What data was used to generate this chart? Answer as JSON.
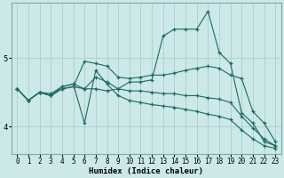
{
  "title": "",
  "xlabel": "Humidex (Indice chaleur)",
  "bg_color": "#cce8e8",
  "line_color": "#1a6b60",
  "grid_color": "#aacece",
  "xlim": [
    -0.5,
    23.5
  ],
  "ylim": [
    3.6,
    5.8
  ],
  "yticks": [
    4,
    5
  ],
  "xticks": [
    0,
    1,
    2,
    3,
    4,
    5,
    6,
    7,
    8,
    9,
    10,
    11,
    12,
    13,
    14,
    15,
    16,
    17,
    18,
    19,
    20,
    21,
    22,
    23
  ],
  "lines": [
    {
      "x": [
        0,
        1,
        2,
        3,
        4,
        5,
        6,
        7,
        8,
        9,
        10,
        11,
        12,
        13,
        14,
        15,
        16,
        17,
        18,
        19,
        20,
        21,
        22,
        23
      ],
      "y": [
        4.55,
        4.38,
        4.5,
        4.45,
        4.55,
        4.58,
        4.55,
        4.55,
        4.52,
        4.55,
        4.65,
        4.65,
        4.68,
        5.32,
        5.42,
        5.42,
        5.42,
        5.68,
        5.08,
        4.92,
        4.2,
        4.05,
        3.78,
        3.72
      ]
    },
    {
      "x": [
        0,
        1,
        2,
        3,
        4,
        5,
        6,
        7,
        8,
        9,
        10,
        11,
        12,
        13,
        14,
        15,
        16,
        17,
        18,
        19,
        20,
        21,
        22,
        23
      ],
      "y": [
        4.55,
        4.38,
        4.5,
        4.45,
        4.55,
        4.58,
        4.95,
        4.92,
        4.88,
        4.72,
        4.7,
        4.72,
        4.75,
        4.75,
        4.78,
        4.82,
        4.85,
        4.88,
        4.85,
        4.75,
        4.7,
        4.22,
        4.05,
        3.78
      ]
    },
    {
      "x": [
        0,
        1,
        2,
        3,
        4,
        5,
        6,
        7,
        8,
        9,
        10,
        11,
        12,
        13,
        14,
        15,
        16,
        17,
        18,
        19,
        20,
        21,
        22,
        23
      ],
      "y": [
        4.55,
        4.38,
        4.5,
        4.48,
        4.58,
        4.62,
        4.55,
        4.72,
        4.65,
        4.55,
        4.52,
        4.52,
        4.5,
        4.48,
        4.48,
        4.45,
        4.45,
        4.42,
        4.4,
        4.35,
        4.15,
        3.98,
        3.82,
        3.72
      ]
    },
    {
      "x": [
        0,
        1,
        2,
        3,
        4,
        5,
        6,
        7,
        8,
        9,
        10,
        11,
        12,
        13,
        14,
        15,
        16,
        17,
        18,
        19,
        20,
        21,
        22,
        23
      ],
      "y": [
        4.55,
        4.38,
        4.5,
        4.45,
        4.58,
        4.62,
        4.05,
        4.82,
        4.62,
        4.45,
        4.38,
        4.35,
        4.32,
        4.3,
        4.28,
        4.25,
        4.22,
        4.18,
        4.15,
        4.1,
        3.95,
        3.82,
        3.72,
        3.68
      ]
    }
  ]
}
